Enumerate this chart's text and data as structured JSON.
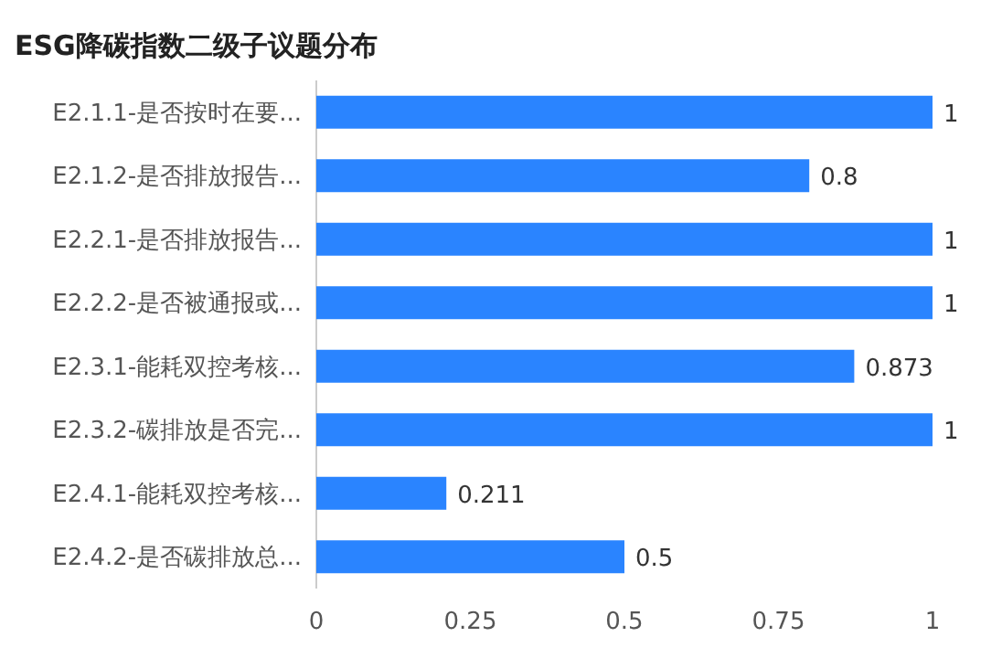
{
  "chart_data": {
    "type": "bar",
    "orientation": "horizontal",
    "title": "ESG降碳指数二级子议题分布",
    "categories": [
      "E2.1.1-是否按时在要...",
      "E2.1.2-是否排放报告...",
      "E2.2.1-是否排放报告...",
      "E2.2.2-是否被通报或...",
      "E2.3.1-能耗双控考核...",
      "E2.3.2-碳排放是否完...",
      "E2.4.1-能耗双控考核...",
      "E2.4.2-是否碳排放总..."
    ],
    "values": [
      1,
      0.8,
      1,
      1,
      0.873,
      1,
      0.211,
      0.5
    ],
    "color": "#2a84ff",
    "xlim": [
      0,
      1
    ],
    "xticks": [
      0,
      0.25,
      0.5,
      0.75,
      1
    ],
    "data_labels": true
  }
}
